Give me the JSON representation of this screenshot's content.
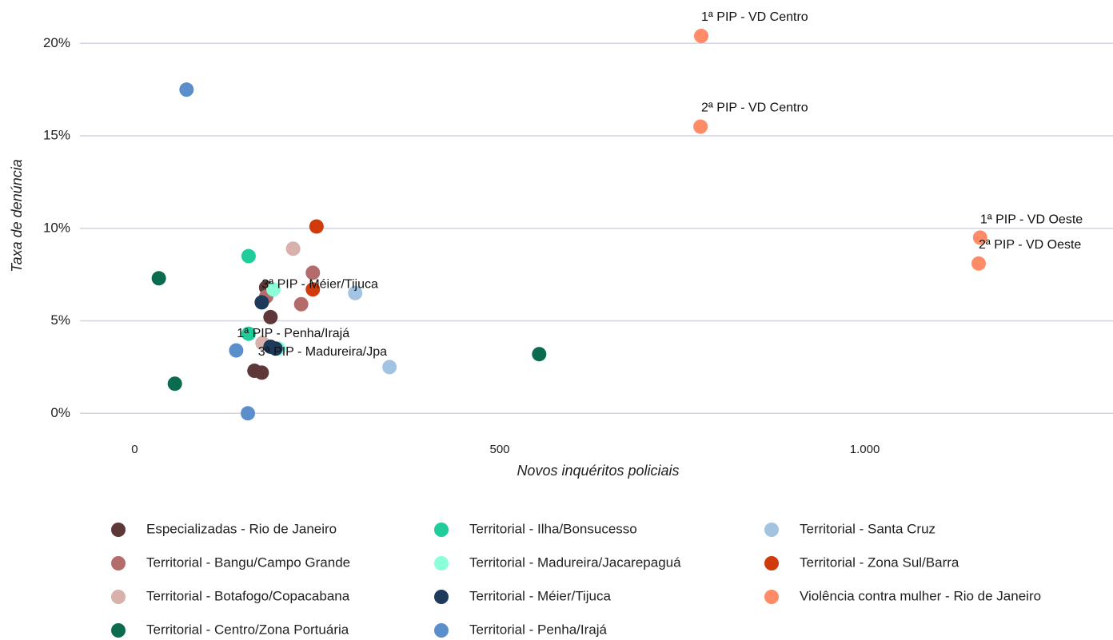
{
  "chart_data": {
    "type": "scatter",
    "xlabel": "Novos inquéritos policiais",
    "ylabel": "Taxa de denúncia",
    "xlim": [
      -75,
      1340
    ],
    "ylim": [
      -1.5,
      22
    ],
    "xticks": [
      0,
      500,
      {
        "value": 1000,
        "label": "1.000"
      }
    ],
    "yticks": [
      {
        "value": 0,
        "label": "0%"
      },
      {
        "value": 5,
        "label": "5%"
      },
      {
        "value": 10,
        "label": "10%"
      },
      {
        "value": 15,
        "label": "15%"
      },
      {
        "value": 20,
        "label": "20%"
      }
    ],
    "grid": true,
    "legend": "bottom",
    "series": [
      {
        "name": "Especializadas - Rio de Janeiro",
        "color": "#5e3838",
        "x": [
          186,
          180,
          164,
          174
        ],
        "values": [
          5.2,
          6.8,
          2.3,
          2.2
        ]
      },
      {
        "name": "Territorial - Bangu/Campo Grande",
        "color": "#b36b6b",
        "x": [
          244,
          228,
          180
        ],
        "values": [
          7.6,
          5.9,
          6.3
        ]
      },
      {
        "name": "Territorial - Botafogo/Copacabana",
        "color": "#d8b0ac",
        "x": [
          217,
          175
        ],
        "values": [
          8.9,
          3.8
        ]
      },
      {
        "name": "Territorial - Centro/Zona Portuária",
        "color": "#0b6b4f",
        "x": [
          33,
          55,
          554
        ],
        "values": [
          7.3,
          1.6,
          3.2
        ]
      },
      {
        "name": "Territorial - Ilha/Bonsucesso",
        "color": "#1fcc9a",
        "x": [
          156,
          156
        ],
        "values": [
          8.5,
          4.3
        ]
      },
      {
        "name": "Territorial - Madureira/Jacarepaguá",
        "color": "#8affd8",
        "x": [
          190,
          197
        ],
        "values": [
          6.7,
          3.5
        ]
      },
      {
        "name": "Territorial - Méier/Tijuca",
        "color": "#1e3a5a",
        "x": [
          174,
          186,
          193
        ],
        "values": [
          6.0,
          3.6,
          3.5
        ]
      },
      {
        "name": "Territorial - Penha/Irajá",
        "color": "#5b8fcc",
        "x": [
          71,
          139,
          155
        ],
        "values": [
          17.5,
          3.4,
          0
        ]
      },
      {
        "name": "Territorial - Santa Cruz",
        "color": "#a3c4e0",
        "x": [
          302,
          349
        ],
        "values": [
          6.5,
          2.5
        ]
      },
      {
        "name": "Territorial - Zona Sul/Barra",
        "color": "#d13a0a",
        "x": [
          249,
          244
        ],
        "values": [
          10.1,
          6.7
        ]
      },
      {
        "name": "Violência contra mulher - Rio de Janeiro",
        "color": "#ff8c66",
        "x": [
          776,
          775,
          1158,
          1156
        ],
        "values": [
          20.4,
          15.5,
          9.5,
          8.1
        ]
      }
    ],
    "annotations": [
      {
        "text": "1ª PIP - VD Centro",
        "x": 776,
        "y": 21.4
      },
      {
        "text": "2ª PIP - VD Centro",
        "x": 776,
        "y": 16.5
      },
      {
        "text": "1ª PIP - VD Oeste",
        "x": 1158,
        "y": 10.45
      },
      {
        "text": "2ª PIP - VD Oeste",
        "x": 1156,
        "y": 9.1
      },
      {
        "text": "3ª PIP - Méier/Tijuca",
        "x": 174,
        "y": 6.95
      },
      {
        "text": "1ª PIP - Penha/Irajá",
        "x": 140,
        "y": 4.3
      },
      {
        "text": "3ª PIP - Madureira/Jpa",
        "x": 169,
        "y": 3.3
      }
    ]
  }
}
